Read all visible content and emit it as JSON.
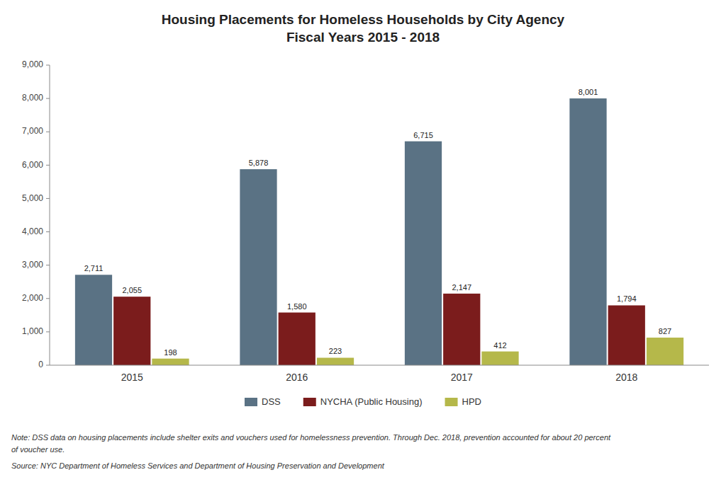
{
  "chart_data": {
    "type": "bar",
    "title": "Housing Placements for Homeless Households by City Agency\nFiscal Years 2015 - 2018",
    "categories": [
      "2015",
      "2016",
      "2017",
      "2018"
    ],
    "series": [
      {
        "name": "DSS",
        "color": "#5a7284",
        "values": [
          2711,
          5878,
          6715,
          8001
        ],
        "value_labels": [
          "2,711",
          "5,878",
          "6,715",
          "8,001"
        ]
      },
      {
        "name": "NYCHA (Public Housing)",
        "color": "#7b1c1c",
        "values": [
          2055,
          1580,
          2147,
          1794
        ],
        "value_labels": [
          "2,055",
          "1,580",
          "2,147",
          "1,794"
        ]
      },
      {
        "name": "HPD",
        "color": "#b5b84a",
        "values": [
          198,
          223,
          412,
          827
        ],
        "value_labels": [
          "198",
          "223",
          "412",
          "827"
        ]
      }
    ],
    "ylim": [
      0,
      9000
    ],
    "yticks": [
      0,
      {
        "value": 1000,
        "label": "1,000"
      },
      {
        "value": 2000,
        "label": "2,000"
      },
      {
        "value": 3000,
        "label": "3,000"
      },
      {
        "value": 4000,
        "label": "4,000"
      },
      {
        "value": 5000,
        "label": "5,000"
      },
      {
        "value": 6000,
        "label": "6,000"
      },
      {
        "value": 7000,
        "label": "7,000"
      },
      {
        "value": 8000,
        "label": "8,000"
      },
      {
        "value": 9000,
        "label": "9,000"
      }
    ],
    "grid": false,
    "legend": "bottom",
    "data_labels": true,
    "annotations": [
      "Note: DSS data on housing placements include shelter exits and vouchers used for homelessness prevention. Through Dec. 2018, prevention accounted for about 20 percent",
      "of voucher use.",
      "Source: NYC Department of Homeless Services and Department of Housing Preservation and Development"
    ]
  }
}
